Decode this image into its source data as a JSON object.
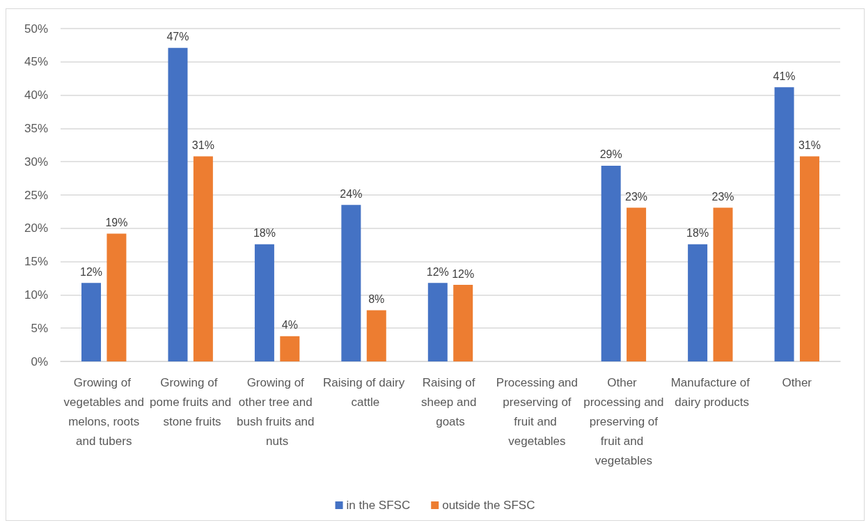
{
  "chart_data": {
    "type": "bar",
    "categories": [
      "Growing of vegetables and melons, roots and tubers",
      "Growing of pome fruits and stone fruits",
      "Growing of other tree and bush fruits and nuts",
      "Raising of dairy cattle",
      "Raising of sheep and goats",
      "Processing and preserving of fruit and vegetables",
      "Other processing and preserving of fruit and vegetables",
      "Manufacture of dairy products",
      "Other"
    ],
    "series": [
      {
        "name": "in the SFSC",
        "color": "#4472c4",
        "values": [
          11.8,
          47.1,
          17.6,
          23.5,
          11.8,
          null,
          29.4,
          17.6,
          41.2
        ],
        "value_labels": [
          "12%",
          "47%",
          "18%",
          "24%",
          "12%",
          null,
          "29%",
          "18%",
          "41%"
        ]
      },
      {
        "name": "outside the SFSC",
        "color": "#ed7d31",
        "values": [
          19.2,
          30.8,
          3.8,
          7.7,
          11.5,
          null,
          23.1,
          23.1,
          30.8
        ],
        "value_labels": [
          "19%",
          "31%",
          "4%",
          "8%",
          "12%",
          null,
          "23%",
          "23%",
          "31%"
        ]
      }
    ],
    "ylim": [
      0,
      50
    ],
    "yticks": [
      {
        "value": 0,
        "label": "0%"
      },
      {
        "value": 5,
        "label": "5%"
      },
      {
        "value": 10,
        "label": "10%"
      },
      {
        "value": 15,
        "label": "15%"
      },
      {
        "value": 20,
        "label": "20%"
      },
      {
        "value": 25,
        "label": "25%"
      },
      {
        "value": 30,
        "label": "30%"
      },
      {
        "value": 35,
        "label": "35%"
      },
      {
        "value": 40,
        "label": "40%"
      },
      {
        "value": 45,
        "label": "45%"
      },
      {
        "value": 50,
        "label": "50%"
      }
    ],
    "grid": "y",
    "legend": "bottom"
  }
}
